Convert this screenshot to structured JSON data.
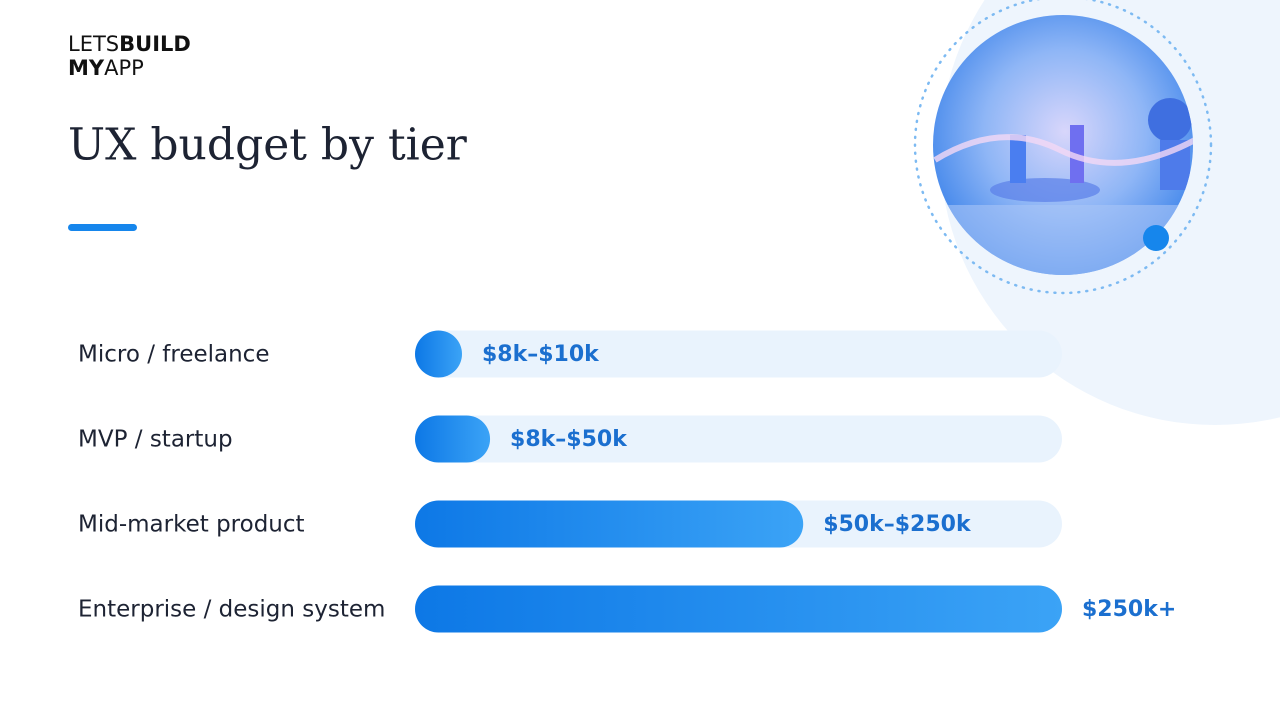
{
  "logo": {
    "line1": [
      "LETS",
      "BUILD"
    ],
    "line2": [
      "MY",
      "APP"
    ]
  },
  "chart_data": {
    "type": "range-bar",
    "title": "UX budget by tier",
    "categories": [
      "Micro / freelance",
      "MVP / startup",
      "Mid-market product",
      "Enterprise / design system"
    ],
    "low": [
      8,
      8,
      50,
      250
    ],
    "high": [
      10,
      50,
      250,
      null
    ],
    "value_labels": [
      "$8k–$10k",
      "$8k–$50k",
      "$50k–$250k",
      "$250k+"
    ],
    "color": "#1f86ec"
  }
}
